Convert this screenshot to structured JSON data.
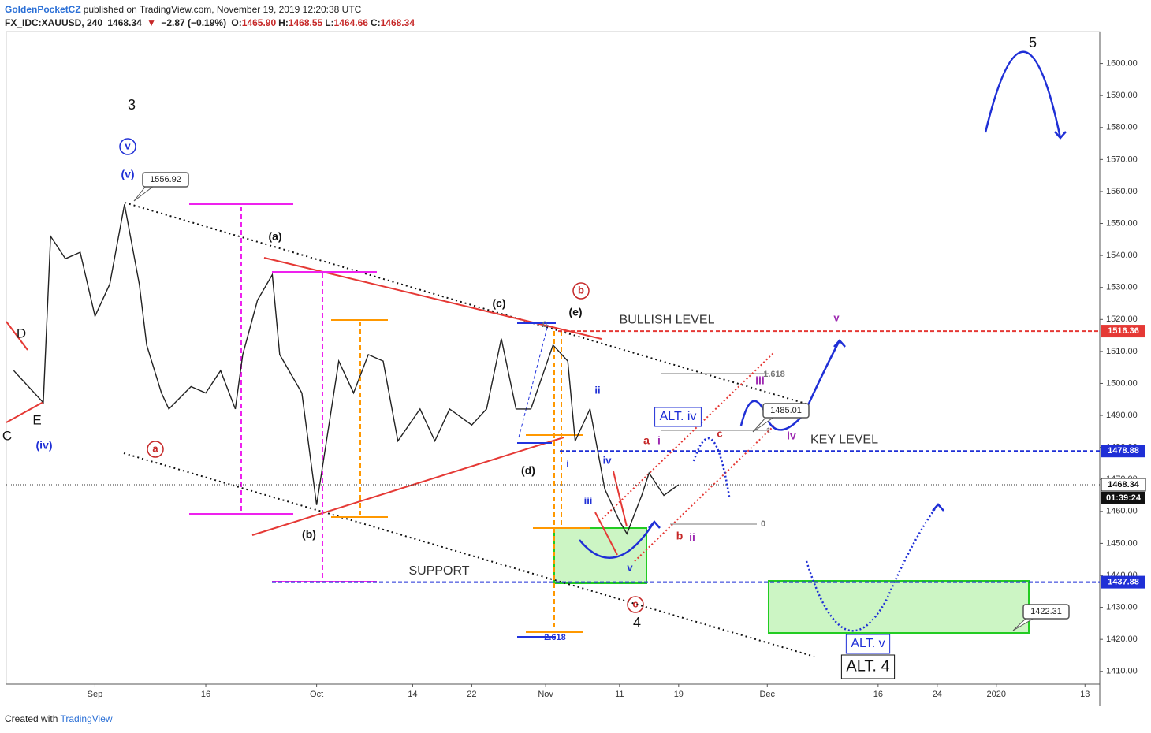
{
  "header": {
    "author": "GoldenPocketCZ",
    "published": "published on TradingView.com, November 19, 2019 12:20:38 UTC",
    "symbol": "FX_IDC:XAUUSD, 240",
    "last": "1468.34",
    "arrow": "▼",
    "change": "−2.87 (−0.19%)",
    "ohlc": [
      {
        "label": "O:",
        "value": "1465.90"
      },
      {
        "label": "H:",
        "value": "1468.55"
      },
      {
        "label": "L:",
        "value": "1464.66"
      },
      {
        "label": "C:",
        "value": "1468.34"
      }
    ]
  },
  "footer": {
    "text": "Created with",
    "brand": "TradingView"
  },
  "chart_data": {
    "type": "line",
    "color": "#222222",
    "x": [
      "2019-08-21",
      "2019-08-23",
      "2019-08-25",
      "2019-08-26",
      "2019-08-28",
      "2019-08-30",
      "2019-09-01",
      "2019-09-03",
      "2019-09-05",
      "2019-09-07",
      "2019-09-08",
      "2019-09-10",
      "2019-09-11",
      "2019-09-14",
      "2019-09-16",
      "2019-09-18",
      "2019-09-20",
      "2019-09-21",
      "2019-09-23",
      "2019-09-25",
      "2019-09-26",
      "2019-09-29",
      "2019-10-01",
      "2019-10-02",
      "2019-10-04",
      "2019-10-06",
      "2019-10-08",
      "2019-10-10",
      "2019-10-12",
      "2019-10-15",
      "2019-10-17",
      "2019-10-19",
      "2019-10-22",
      "2019-10-24",
      "2019-10-26",
      "2019-10-28",
      "2019-10-30",
      "2019-11-02",
      "2019-11-04",
      "2019-11-05",
      "2019-11-07",
      "2019-11-09",
      "2019-11-11",
      "2019-11-12",
      "2019-11-14",
      "2019-11-15",
      "2019-11-17",
      "2019-11-19"
    ],
    "values": [
      1504,
      1499,
      1494,
      1546,
      1539,
      1541,
      1521,
      1531,
      1556,
      1531,
      1512,
      1497,
      1492,
      1499,
      1497,
      1504,
      1492,
      1509,
      1526,
      1534,
      1509,
      1497,
      1462,
      1477,
      1507,
      1497,
      1509,
      1507,
      1482,
      1492,
      1482,
      1492,
      1487,
      1492,
      1514,
      1492,
      1492,
      1512,
      1507,
      1482,
      1492,
      1467,
      1457,
      1453,
      1465,
      1472,
      1465,
      1468.34
    ],
    "xlim": [
      "2019-08-20",
      "2020-01-15"
    ],
    "xticks": [
      {
        "value": "2019-09-01",
        "label": "Sep"
      },
      {
        "value": "2019-09-16",
        "label": "16"
      },
      {
        "value": "2019-10-01",
        "label": "Oct"
      },
      {
        "value": "2019-10-14",
        "label": "14"
      },
      {
        "value": "2019-10-22",
        "label": "22"
      },
      {
        "value": "2019-11-01",
        "label": "Nov"
      },
      {
        "value": "2019-11-11",
        "label": "11"
      },
      {
        "value": "2019-11-19",
        "label": "19"
      },
      {
        "value": "2019-12-01",
        "label": "Dec"
      },
      {
        "value": "2019-12-16",
        "label": "16"
      },
      {
        "value": "2019-12-24",
        "label": "24"
      },
      {
        "value": "2020-01-01",
        "label": "2020"
      },
      {
        "value": "2020-01-13",
        "label": "13"
      }
    ],
    "ylim": [
      1406,
      1610
    ],
    "yticks": [
      {
        "value": 1410,
        "label": "1410.00"
      },
      {
        "value": 1420,
        "label": "1420.00"
      },
      {
        "value": 1430,
        "label": "1430.00"
      },
      {
        "value": 1440,
        "label": "1440.00"
      },
      {
        "value": 1450,
        "label": "1450.00"
      },
      {
        "value": 1460,
        "label": "1460.00"
      },
      {
        "value": 1470,
        "label": "1470.00"
      },
      {
        "value": 1480,
        "label": "1480.00"
      },
      {
        "value": 1490,
        "label": "1490.00"
      },
      {
        "value": 1500,
        "label": "1500.00"
      },
      {
        "value": 1510,
        "label": "1510.00"
      },
      {
        "value": 1520,
        "label": "1520.00"
      },
      {
        "value": 1530,
        "label": "1530.00"
      },
      {
        "value": 1540,
        "label": "1540.00"
      },
      {
        "value": 1550,
        "label": "1550.00"
      },
      {
        "value": 1560,
        "label": "1560.00"
      },
      {
        "value": 1570,
        "label": "1570.00"
      },
      {
        "value": 1580,
        "label": "1580.00"
      },
      {
        "value": 1590,
        "label": "1590.00"
      },
      {
        "value": 1600,
        "label": "1600.00"
      }
    ],
    "levels": [
      {
        "label": "BULLISH LEVEL",
        "value": 1516.36,
        "color": "#e53935"
      },
      {
        "label": "KEY LEVEL",
        "value": 1478.88,
        "color": "#1f2fd6"
      },
      {
        "label": "SUPPORT",
        "value": 1437.88,
        "color": "#1f2fd6"
      }
    ],
    "last": 1468.34,
    "countdown": "01:39:24",
    "callouts": [
      1556.92,
      1485.01,
      1422.31
    ],
    "annotations": [
      "5",
      "3",
      "v",
      "(v)",
      "(a)",
      "(c)",
      "(e)",
      "b",
      "a",
      "(b)",
      "(d)",
      "c",
      "4",
      "D",
      "E",
      "C",
      "(iv)",
      "ii",
      "i",
      "iv",
      "iii",
      "v",
      "a",
      "i",
      "c",
      "b",
      "ii",
      "iii",
      "iv",
      "v",
      "ALT. iv",
      "ALT. v",
      "ALT. 4",
      "1.618",
      "1",
      "0",
      "0",
      "2.618"
    ]
  }
}
